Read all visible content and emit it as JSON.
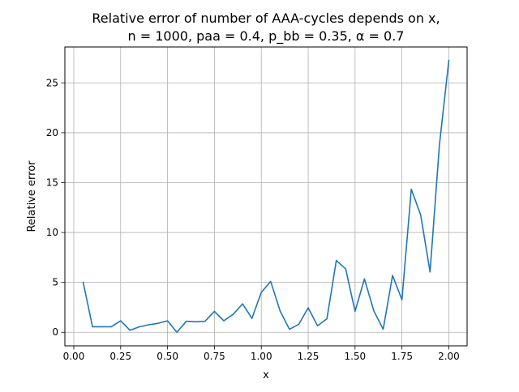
{
  "chart_data": {
    "type": "line",
    "title_line1": "Relative error of number of AAA-cycles depends on x,",
    "title_line2": "n = 1000, paa = 0.4, p_bb = 0.35, α = 0.7",
    "xlabel": "x",
    "ylabel": "Relative error",
    "xlim": [
      -0.0475,
      2.0975
    ],
    "ylim": [
      -1.36,
      28.6
    ],
    "xticks": [
      0.0,
      0.25,
      0.5,
      0.75,
      1.0,
      1.25,
      1.5,
      1.75,
      2.0
    ],
    "xtick_labels": [
      "0.00",
      "0.25",
      "0.50",
      "0.75",
      "1.00",
      "1.25",
      "1.50",
      "1.75",
      "2.00"
    ],
    "yticks": [
      0,
      5,
      10,
      15,
      20,
      25
    ],
    "ytick_labels": [
      "0",
      "5",
      "10",
      "15",
      "20",
      "25"
    ],
    "grid": true,
    "color": "#1f77b4",
    "series": [
      {
        "x": [
          0.05,
          0.1,
          0.15,
          0.2,
          0.25,
          0.3,
          0.35,
          0.4,
          0.45,
          0.5,
          0.55,
          0.6,
          0.65,
          0.7,
          0.75,
          0.8,
          0.85,
          0.9,
          0.95,
          1.0,
          1.05,
          1.1,
          1.15,
          1.2,
          1.25,
          1.3,
          1.35,
          1.4,
          1.45,
          1.5,
          1.55,
          1.6,
          1.65,
          1.7,
          1.75,
          1.8,
          1.85,
          1.9,
          1.95,
          2.0
        ],
        "values": [
          5.0,
          0.55,
          0.55,
          0.55,
          1.15,
          0.2,
          0.55,
          0.75,
          0.9,
          1.15,
          0.0,
          1.1,
          1.05,
          1.1,
          2.1,
          1.15,
          1.8,
          2.85,
          1.4,
          4.0,
          5.1,
          2.15,
          0.3,
          0.8,
          2.45,
          0.65,
          1.35,
          7.2,
          6.35,
          2.1,
          5.35,
          2.15,
          0.3,
          5.7,
          3.25,
          14.35,
          11.75,
          6.05,
          18.8,
          27.25
        ]
      }
    ]
  }
}
